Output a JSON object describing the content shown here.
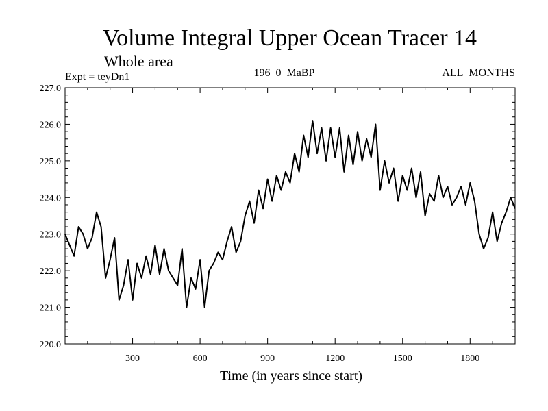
{
  "chart_data": {
    "type": "line",
    "title": "Volume Integral Upper Ocean Tracer 14",
    "subtitle": "Whole area",
    "experiment_label": "Expt = teyDn1",
    "center_label": "196_0_MaBP",
    "right_label": "ALL_MONTHS",
    "xlabel": "Time (in years since start)",
    "ylabel": "",
    "xlim": [
      0,
      2000
    ],
    "ylim": [
      220.0,
      227.0
    ],
    "x_ticks": [
      300,
      600,
      900,
      1200,
      1500,
      1800
    ],
    "y_ticks": [
      "220.0",
      "221.0",
      "222.0",
      "223.0",
      "224.0",
      "225.0",
      "226.0",
      "227.0"
    ],
    "grid": false,
    "legend": "none",
    "series": [
      {
        "name": "Tracer 14",
        "x": [
          0,
          20,
          40,
          60,
          80,
          100,
          120,
          140,
          160,
          180,
          200,
          220,
          240,
          260,
          280,
          300,
          320,
          340,
          360,
          380,
          400,
          420,
          440,
          460,
          480,
          500,
          520,
          540,
          560,
          580,
          600,
          620,
          640,
          660,
          680,
          700,
          720,
          740,
          760,
          780,
          800,
          820,
          840,
          860,
          880,
          900,
          920,
          940,
          960,
          980,
          1000,
          1020,
          1040,
          1060,
          1080,
          1100,
          1120,
          1140,
          1160,
          1180,
          1200,
          1220,
          1240,
          1260,
          1280,
          1300,
          1320,
          1340,
          1360,
          1380,
          1400,
          1420,
          1440,
          1460,
          1480,
          1500,
          1520,
          1540,
          1560,
          1580,
          1600,
          1620,
          1640,
          1660,
          1680,
          1700,
          1720,
          1740,
          1760,
          1780,
          1800,
          1820,
          1840,
          1860,
          1880,
          1900,
          1920,
          1940,
          1960,
          1980,
          2000
        ],
        "values": [
          223.0,
          222.7,
          222.4,
          223.2,
          223.0,
          222.6,
          222.9,
          223.6,
          223.2,
          221.8,
          222.3,
          222.9,
          221.2,
          221.6,
          222.3,
          221.2,
          222.2,
          221.8,
          222.4,
          221.9,
          222.7,
          221.9,
          222.6,
          222.0,
          221.8,
          221.6,
          222.6,
          221.0,
          221.8,
          221.5,
          222.3,
          221.0,
          222.0,
          222.2,
          222.5,
          222.3,
          222.8,
          223.2,
          222.5,
          222.8,
          223.5,
          223.9,
          223.3,
          224.2,
          223.7,
          224.5,
          223.9,
          224.6,
          224.2,
          224.7,
          224.4,
          225.2,
          224.7,
          225.7,
          225.1,
          226.1,
          225.2,
          225.9,
          225.0,
          225.9,
          225.1,
          225.9,
          224.7,
          225.7,
          224.9,
          225.8,
          225.0,
          225.6,
          225.1,
          226.0,
          224.2,
          225.0,
          224.4,
          224.8,
          223.9,
          224.6,
          224.2,
          224.8,
          224.0,
          224.7,
          223.5,
          224.1,
          223.9,
          224.6,
          224.0,
          224.3,
          223.8,
          224.0,
          224.3,
          223.8,
          224.4,
          223.9,
          223.0,
          222.6,
          222.9,
          223.6,
          222.8,
          223.3,
          223.6,
          224.0,
          223.7
        ]
      }
    ]
  }
}
